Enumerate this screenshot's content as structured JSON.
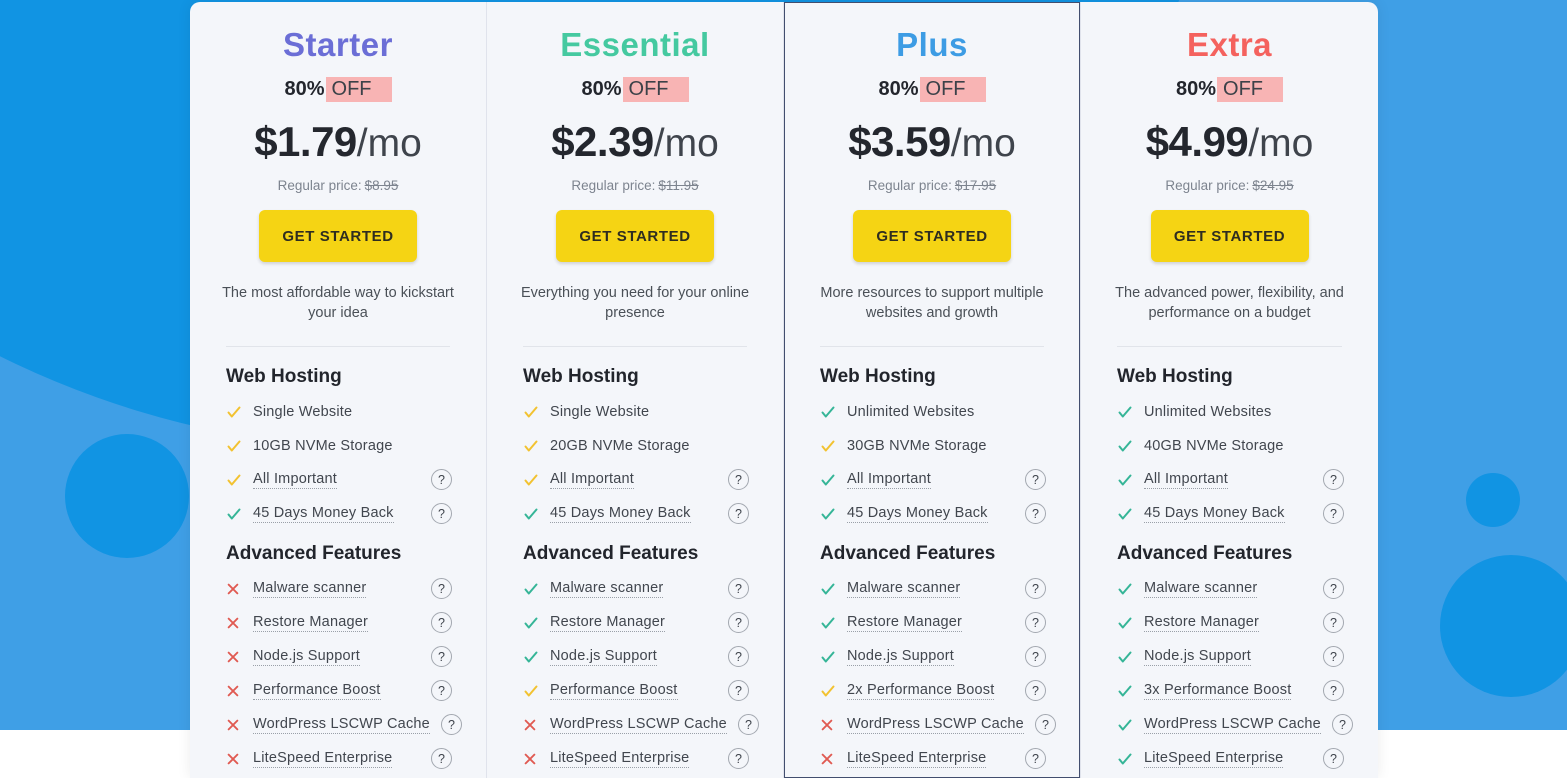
{
  "page": {
    "discount_percent": "80%",
    "discount_suffix": "OFF",
    "per_month": "/mo",
    "regular_price_label": "Regular price:",
    "button_label": "GET STARTED",
    "web_hosting_heading": "Web Hosting",
    "advanced_heading": "Advanced Features",
    "help_glyph": "?"
  },
  "colors": {
    "background_light_blue": "#3f9fe6",
    "background_dark_blue": "#1194e3",
    "card_background": "#f4f6fa",
    "highlight_pink": "#f8b4b4",
    "button_yellow": "#f5d414",
    "check_yellow": "#f2c230",
    "check_green": "#35b597",
    "cross_red": "#e05a52",
    "highlighted_card_border": "#424e6e"
  },
  "plans": [
    {
      "name": "Starter",
      "name_color": "#6b6ed6",
      "price": "$1.79",
      "regular_price": "$8.95",
      "description": "The most affordable way to kickstart your idea",
      "highlighted": false,
      "web_hosting": [
        {
          "label": "Single Website",
          "icon": "check-yellow",
          "tooltip": false
        },
        {
          "label": "10GB NVMe Storage",
          "icon": "check-yellow",
          "tooltip": false
        },
        {
          "label": "All Important",
          "icon": "check-yellow",
          "tooltip": true
        },
        {
          "label": "45 Days Money Back",
          "icon": "check-green",
          "tooltip": true
        }
      ],
      "advanced_features": [
        {
          "label": "Malware scanner",
          "icon": "cross-red",
          "tooltip": true
        },
        {
          "label": "Restore Manager",
          "icon": "cross-red",
          "tooltip": true
        },
        {
          "label": "Node.js Support",
          "icon": "cross-red",
          "tooltip": true
        },
        {
          "label": "Performance Boost",
          "icon": "cross-red",
          "tooltip": true
        },
        {
          "label": "WordPress LSCWP Cache",
          "icon": "cross-red",
          "tooltip": true
        },
        {
          "label": "LiteSpeed Enterprise",
          "icon": "cross-red",
          "tooltip": true
        }
      ]
    },
    {
      "name": "Essential",
      "name_color": "#45c9a0",
      "price": "$2.39",
      "regular_price": "$11.95",
      "description": "Everything you need for your online presence",
      "highlighted": false,
      "web_hosting": [
        {
          "label": "Single Website",
          "icon": "check-yellow",
          "tooltip": false
        },
        {
          "label": "20GB NVMe Storage",
          "icon": "check-yellow",
          "tooltip": false
        },
        {
          "label": "All Important",
          "icon": "check-yellow",
          "tooltip": true
        },
        {
          "label": "45 Days Money Back",
          "icon": "check-green",
          "tooltip": true
        }
      ],
      "advanced_features": [
        {
          "label": "Malware scanner",
          "icon": "check-green",
          "tooltip": true
        },
        {
          "label": "Restore Manager",
          "icon": "check-green",
          "tooltip": true
        },
        {
          "label": "Node.js Support",
          "icon": "check-green",
          "tooltip": true
        },
        {
          "label": "Performance Boost",
          "icon": "check-yellow",
          "tooltip": true
        },
        {
          "label": "WordPress LSCWP Cache",
          "icon": "cross-red",
          "tooltip": true
        },
        {
          "label": "LiteSpeed Enterprise",
          "icon": "cross-red",
          "tooltip": true
        }
      ]
    },
    {
      "name": "Plus",
      "name_color": "#3d9ce4",
      "price": "$3.59",
      "regular_price": "$17.95",
      "description": "More resources to support multiple websites and growth",
      "highlighted": true,
      "web_hosting": [
        {
          "label": "Unlimited Websites",
          "icon": "check-green",
          "tooltip": false
        },
        {
          "label": "30GB NVMe Storage",
          "icon": "check-yellow",
          "tooltip": false
        },
        {
          "label": "All Important",
          "icon": "check-green",
          "tooltip": true
        },
        {
          "label": "45 Days Money Back",
          "icon": "check-green",
          "tooltip": true
        }
      ],
      "advanced_features": [
        {
          "label": "Malware scanner",
          "icon": "check-green",
          "tooltip": true
        },
        {
          "label": "Restore Manager",
          "icon": "check-green",
          "tooltip": true
        },
        {
          "label": "Node.js Support",
          "icon": "check-green",
          "tooltip": true
        },
        {
          "label": "2x Performance Boost",
          "icon": "check-yellow",
          "tooltip": true
        },
        {
          "label": "WordPress LSCWP Cache",
          "icon": "cross-red",
          "tooltip": true
        },
        {
          "label": "LiteSpeed Enterprise",
          "icon": "cross-red",
          "tooltip": true
        }
      ]
    },
    {
      "name": "Extra",
      "name_color": "#f4625e",
      "price": "$4.99",
      "regular_price": "$24.95",
      "description": "The advanced power, flexibility, and performance on a budget",
      "highlighted": false,
      "web_hosting": [
        {
          "label": "Unlimited Websites",
          "icon": "check-green",
          "tooltip": false
        },
        {
          "label": "40GB NVMe Storage",
          "icon": "check-green",
          "tooltip": false
        },
        {
          "label": "All Important",
          "icon": "check-green",
          "tooltip": true
        },
        {
          "label": "45 Days Money Back",
          "icon": "check-green",
          "tooltip": true
        }
      ],
      "advanced_features": [
        {
          "label": "Malware scanner",
          "icon": "check-green",
          "tooltip": true
        },
        {
          "label": "Restore Manager",
          "icon": "check-green",
          "tooltip": true
        },
        {
          "label": "Node.js Support",
          "icon": "check-green",
          "tooltip": true
        },
        {
          "label": "3x Performance Boost",
          "icon": "check-green",
          "tooltip": true
        },
        {
          "label": "WordPress LSCWP Cache",
          "icon": "check-green",
          "tooltip": true
        },
        {
          "label": "LiteSpeed Enterprise",
          "icon": "check-green",
          "tooltip": true
        }
      ]
    }
  ]
}
